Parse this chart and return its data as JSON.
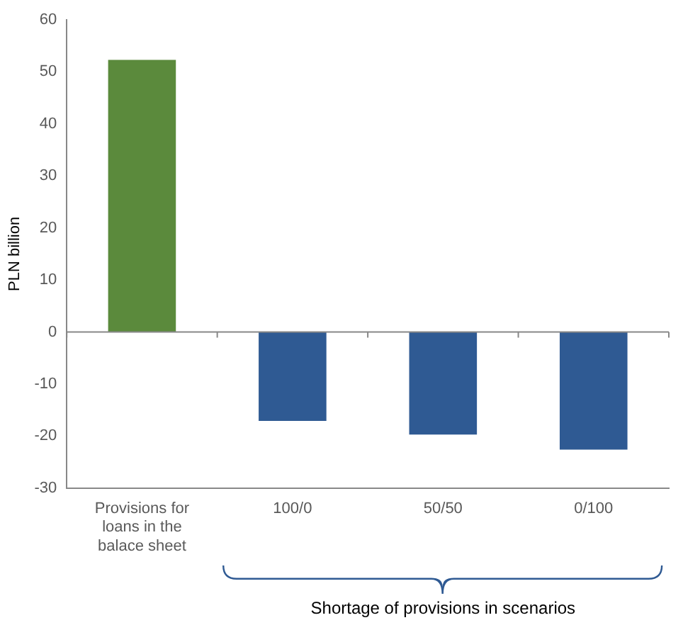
{
  "chart_data": {
    "type": "bar",
    "ylabel": "PLN billion",
    "categories": [
      "Provisions for loans in the balace sheet",
      "100/0",
      "50/50",
      "0/100"
    ],
    "values": [
      52.3,
      -17.1,
      -19.7,
      -22.6
    ],
    "colors": [
      "#5b8a3c",
      "#2f5a93",
      "#2f5a93",
      "#2f5a93"
    ],
    "ylim": [
      -30,
      60
    ],
    "yticks": [
      -30,
      -20,
      -10,
      0,
      10,
      20,
      30,
      40,
      50,
      60
    ],
    "grid": false,
    "legend": false,
    "ref_lines": [
      {
        "axis": "y",
        "value": 0,
        "color": "#888888"
      }
    ],
    "annotations": [
      "Shortage of provisions in scenarios"
    ]
  }
}
